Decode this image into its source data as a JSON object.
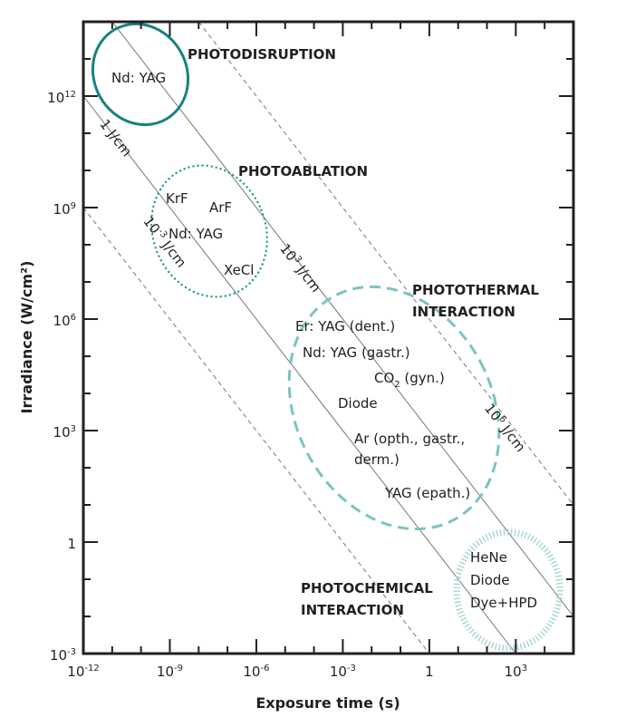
{
  "chart_data": {
    "type": "diagram",
    "title": "",
    "xlabel": "Exposure time (s)",
    "ylabel": "Irradiance (W/cm²)",
    "x_scale": "log10",
    "y_scale": "log10",
    "xlim_log10": [
      -12,
      5
    ],
    "ylim_log10": [
      -3,
      14
    ],
    "x_ticks": [
      {
        "log": -12,
        "base": "10",
        "exp": "-12"
      },
      {
        "log": -9,
        "base": "10",
        "exp": "-9"
      },
      {
        "log": -6,
        "base": "10",
        "exp": "-6"
      },
      {
        "log": -3,
        "base": "10",
        "exp": "-3"
      },
      {
        "log": 0,
        "base": "1",
        "exp": ""
      },
      {
        "log": 3,
        "base": "10",
        "exp": "3"
      }
    ],
    "y_ticks": [
      {
        "log": 12,
        "base": "10",
        "exp": "12"
      },
      {
        "log": 9,
        "base": "10",
        "exp": "9"
      },
      {
        "log": 6,
        "base": "10",
        "exp": "6"
      },
      {
        "log": 3,
        "base": "10",
        "exp": "3"
      },
      {
        "log": 0,
        "base": "1",
        "exp": ""
      },
      {
        "log": -3,
        "base": "10",
        "exp": "-3"
      }
    ],
    "fluence_lines": [
      {
        "log_fluence": -3,
        "style": "dashed",
        "label_base": "10",
        "label_exp": "-3",
        "label_unit": " J/cm"
      },
      {
        "log_fluence": 0,
        "style": "solid",
        "label_base": "1",
        "label_exp": "",
        "label_unit": " J/cm"
      },
      {
        "log_fluence": 3,
        "style": "solid",
        "label_base": "10",
        "label_exp": "3",
        "label_unit": " J/cm"
      },
      {
        "log_fluence": 6,
        "style": "dashed",
        "label_base": "10",
        "label_exp": "6",
        "label_unit": " J/cm"
      }
    ],
    "regions": [
      {
        "name": "PHOTODISRUPTION",
        "lines": [
          "PHOTODISRUPTION"
        ],
        "lasers": [
          "Nd: YAG"
        ]
      },
      {
        "name": "PHOTOABLATION",
        "lines": [
          "PHOTOABLATION"
        ],
        "lasers": [
          "KrF",
          "ArF",
          "Nd: YAG",
          "XeCl"
        ]
      },
      {
        "name": "PHOTOTHERMAL INTERACTION",
        "lines": [
          "PHOTOTHERMAL",
          "INTERACTION"
        ],
        "lasers": [
          "Er: YAG (dent.)",
          "Nd: YAG (gastr.)",
          "CO2 (gyn.)",
          "Diode",
          "Ar (opth., gastr.,",
          "derm.)",
          "YAG (epath.)"
        ]
      },
      {
        "name": "PHOTOCHEMICAL INTERACTION",
        "lines": [
          "PHOTOCHEMICAL",
          "INTERACTION"
        ],
        "lasers": [
          "HeNe",
          "Diode",
          "Dye+HPD"
        ]
      }
    ],
    "co2": {
      "base": "CO",
      "sub": "2",
      "rest": " (gyn.)"
    },
    "colors": {
      "disruption": "#16827f",
      "ablation": "#2a9b97",
      "thermal": "#7cc3c0",
      "chemical": "#a9d8d6",
      "axis": "#231f20",
      "lines": "#777777"
    }
  }
}
